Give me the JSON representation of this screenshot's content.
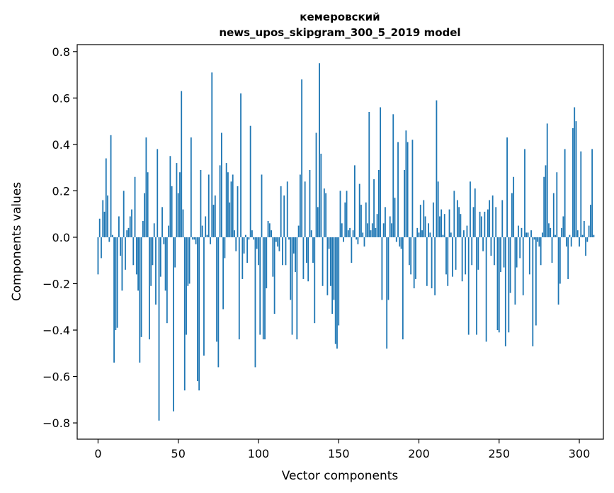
{
  "chart_data": {
    "type": "bar",
    "title": [
      "кемеровский",
      "news_upos_skipgram_300_5_2019 model"
    ],
    "xlabel": "Vector components",
    "ylabel": "Components values",
    "xlim": [
      -13,
      315
    ],
    "ylim": [
      -0.87,
      0.83
    ],
    "xticks": [
      0,
      50,
      100,
      150,
      200,
      250,
      300
    ],
    "yticks": [
      -0.8,
      -0.6,
      -0.4,
      -0.2,
      0.0,
      0.2,
      0.4,
      0.6,
      0.8
    ],
    "ytick_labels": [
      "−0.8",
      "−0.6",
      "−0.4",
      "−0.2",
      "0.0",
      "0.2",
      "0.4",
      "0.6",
      "0.8"
    ],
    "bar_color": "#1f77b4",
    "values": [
      -0.16,
      0.08,
      -0.09,
      0.16,
      0.11,
      0.34,
      0.18,
      -0.02,
      0.44,
      0.01,
      -0.54,
      -0.4,
      -0.39,
      0.09,
      -0.08,
      -0.23,
      0.2,
      -0.14,
      0.03,
      0.04,
      0.09,
      0.12,
      -0.12,
      0.26,
      -0.16,
      -0.23,
      -0.54,
      -0.43,
      0.07,
      0.19,
      0.43,
      0.28,
      -0.44,
      -0.21,
      -0.12,
      0.06,
      -0.29,
      0.38,
      -0.79,
      -0.17,
      0.13,
      -0.03,
      -0.23,
      -0.37,
      0.05,
      0.35,
      0.22,
      -0.75,
      -0.13,
      0.32,
      0.19,
      0.28,
      0.63,
      0.12,
      -0.66,
      -0.42,
      -0.21,
      -0.2,
      0.43,
      -0.01,
      -0.01,
      -0.03,
      -0.62,
      -0.66,
      0.29,
      0.05,
      -0.51,
      0.09,
      0.01,
      0.27,
      -0.03,
      0.71,
      0.14,
      0.18,
      -0.45,
      -0.56,
      0.31,
      0.45,
      -0.31,
      -0.09,
      0.32,
      0.28,
      0.15,
      0.24,
      0.27,
      0.03,
      -0.06,
      0.22,
      -0.44,
      0.62,
      -0.18,
      -0.07,
      0.01,
      -0.11,
      -0.01,
      0.48,
      0.03,
      -0.01,
      -0.56,
      -0.05,
      -0.12,
      -0.42,
      0.27,
      -0.44,
      -0.44,
      -0.22,
      0.07,
      0.06,
      0.03,
      -0.17,
      -0.33,
      -0.02,
      -0.04,
      -0.06,
      0.22,
      -0.12,
      0.18,
      -0.12,
      0.24,
      -0.01,
      -0.27,
      -0.42,
      -0.07,
      -0.15,
      -0.44,
      0.05,
      0.27,
      0.68,
      -0.18,
      0.24,
      -0.11,
      -0.19,
      0.29,
      0.03,
      -0.11,
      -0.37,
      0.45,
      0.13,
      0.75,
      0.36,
      -0.21,
      0.21,
      0.19,
      -0.25,
      -0.05,
      -0.21,
      -0.33,
      -0.27,
      -0.46,
      -0.48,
      -0.38,
      0.2,
      0.06,
      -0.02,
      0.15,
      0.2,
      0.03,
      0.04,
      -0.11,
      0.03,
      0.31,
      -0.01,
      -0.03,
      0.23,
      0.14,
      0.02,
      -0.04,
      0.15,
      0.06,
      0.54,
      0.03,
      0.06,
      0.25,
      0.04,
      0.1,
      0.29,
      0.56,
      -0.27,
      0.06,
      0.13,
      -0.48,
      -0.27,
      0.09,
      0.06,
      0.53,
      0.17,
      -0.02,
      0.41,
      -0.04,
      -0.05,
      -0.44,
      0.29,
      0.46,
      0.41,
      -0.12,
      -0.16,
      0.42,
      -0.22,
      -0.18,
      0.04,
      0.02,
      0.14,
      0.03,
      0.16,
      0.09,
      -0.21,
      0.06,
      0.02,
      -0.22,
      0.15,
      -0.25,
      0.59,
      0.24,
      0.09,
      0.12,
      0.01,
      0.1,
      -0.16,
      -0.21,
      0.12,
      0.02,
      -0.17,
      0.2,
      -0.14,
      0.16,
      0.13,
      0.1,
      -0.19,
      0.03,
      -0.16,
      0.05,
      -0.42,
      0.24,
      -0.12,
      0.13,
      0.21,
      -0.42,
      -0.14,
      0.11,
      0.09,
      -0.06,
      0.11,
      -0.45,
      0.12,
      0.16,
      -0.08,
      0.18,
      -0.12,
      0.13,
      -0.4,
      -0.41,
      -0.15,
      0.16,
      -0.13,
      -0.47,
      0.43,
      -0.41,
      -0.24,
      0.19,
      0.26,
      -0.29,
      -0.13,
      0.05,
      -0.09,
      0.04,
      -0.25,
      0.38,
      0.02,
      0.02,
      -0.16,
      0.03,
      -0.47,
      -0.01,
      -0.38,
      -0.02,
      -0.04,
      -0.12,
      0.02,
      0.26,
      0.31,
      0.49,
      0.06,
      0.04,
      -0.11,
      0.19,
      0.01,
      0.28,
      -0.29,
      -0.2,
      0.04,
      0.09,
      0.38,
      -0.04,
      -0.18,
      0.01,
      -0.04,
      0.47,
      0.56,
      0.5,
      0.03,
      -0.04,
      0.37,
      0.01,
      0.07,
      -0.08,
      -0.02,
      0.05,
      0.14,
      0.38,
      0.01
    ]
  }
}
